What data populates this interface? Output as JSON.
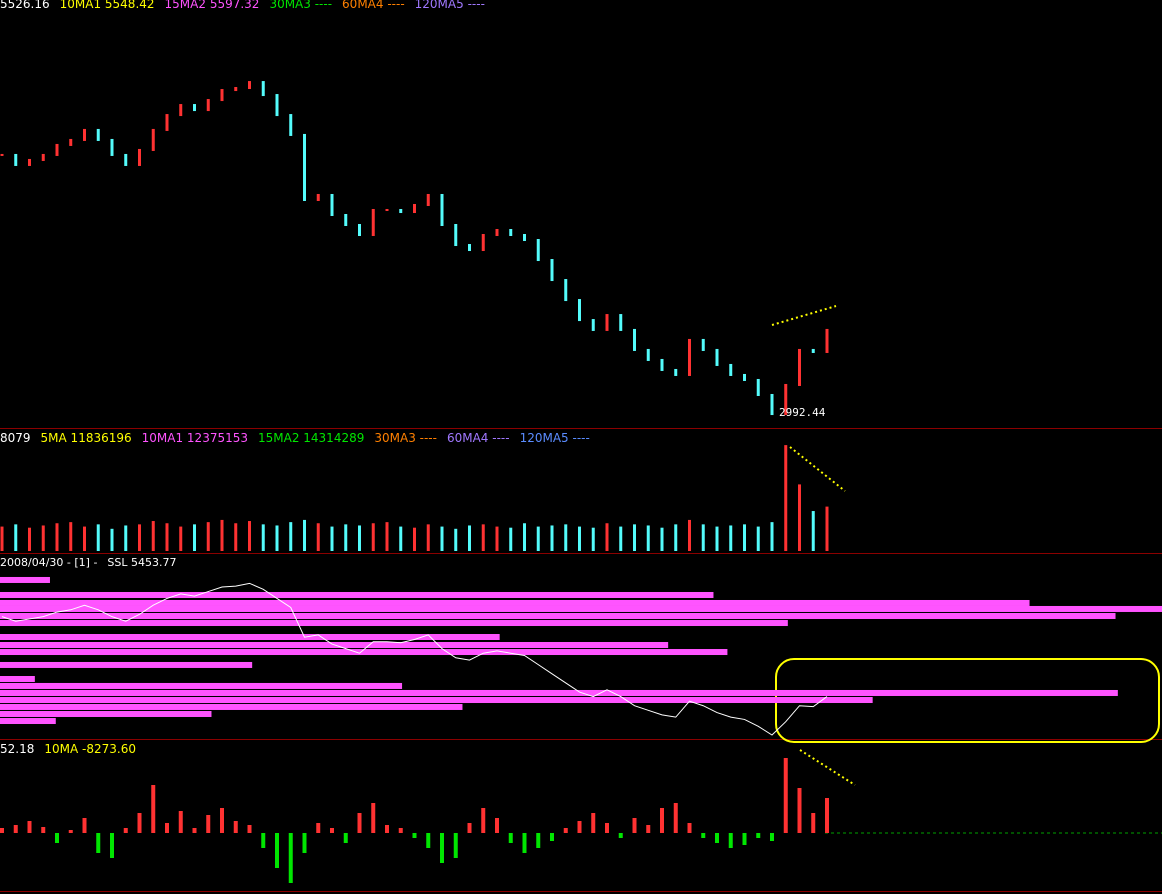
{
  "chart_data": [
    {
      "type": "price-bars",
      "legend": [
        {
          "text": "5526.16",
          "color": "#ffffff"
        },
        {
          "text": "10MA1 5548.42",
          "color": "#ffff00"
        },
        {
          "text": "15MA2 5597.32",
          "color": "#ff54ff"
        },
        {
          "text": "30MA3 ----",
          "color": "#00e600"
        },
        {
          "text": "60MA4 ----",
          "color": "#ff8000"
        },
        {
          "text": "120MA5 ----",
          "color": "#a078ff"
        }
      ],
      "annotation": "2992.44",
      "up_color": "#ff3232",
      "down_color": "#54fcfc",
      "ylim": [
        2900,
        6300
      ],
      "values": [
        5167,
        5083,
        5125,
        5167,
        5251,
        5293,
        5377,
        5293,
        5167,
        5083,
        5209,
        5377,
        5502,
        5586,
        5544,
        5628,
        5712,
        5729,
        5779,
        5670,
        5502,
        5335,
        4789,
        4831,
        4663,
        4579,
        4495,
        4705,
        4705,
        4688,
        4747,
        4831,
        4579,
        4411,
        4369,
        4495,
        4537,
        4495,
        4453,
        4285,
        4117,
        3949,
        3781,
        3698,
        3823,
        3698,
        3530,
        3446,
        3362,
        3320,
        3614,
        3530,
        3404,
        3320,
        3278,
        3152,
        2992,
        3236,
        3530,
        3513,
        3698
      ]
    },
    {
      "type": "volume-bars",
      "legend": [
        {
          "text": "8079",
          "color": "#ffffff"
        },
        {
          "text": "5MA 11836196",
          "color": "#ffff00"
        },
        {
          "text": "10MA1 12375153",
          "color": "#ff54ff"
        },
        {
          "text": "15MA2 14314289",
          "color": "#00e600"
        },
        {
          "text": "30MA3 ----",
          "color": "#ff8000"
        },
        {
          "text": "60MA4 ----",
          "color": "#a078ff"
        },
        {
          "text": "120MA5 ----",
          "color": "#5a8cff"
        }
      ],
      "ylim": [
        0,
        50000000
      ],
      "values": [
        11000000,
        12000000,
        10500000,
        11500000,
        12500000,
        13000000,
        11000000,
        12000000,
        10000000,
        11500000,
        12000000,
        13500000,
        12500000,
        11000000,
        12000000,
        13000000,
        14000000,
        12500000,
        13500000,
        12000000,
        11500000,
        13000000,
        14000000,
        12500000,
        11000000,
        12000000,
        11500000,
        12500000,
        13000000,
        11000000,
        10500000,
        12000000,
        11000000,
        10000000,
        11500000,
        12000000,
        11000000,
        10500000,
        12500000,
        11000000,
        11500000,
        12000000,
        11000000,
        10500000,
        12500000,
        11000000,
        12000000,
        11500000,
        10500000,
        12000000,
        14000000,
        12000000,
        11000000,
        11500000,
        12000000,
        11000000,
        13000000,
        47700000,
        30000000,
        18000000,
        20000000
      ]
    },
    {
      "type": "ssl",
      "legend": [
        {
          "text": "2008/04/30 - [1] -",
          "color": "#ffffff"
        },
        {
          "text": "SSL 5453.77",
          "color": "#ffffff"
        }
      ],
      "color": "#ff54ff",
      "line_color": "#ffffff",
      "ylim": [
        2900,
        6300
      ],
      "xlim": [
        0,
        100
      ],
      "levels": [
        5841,
        5565,
        5418,
        5308,
        5179,
        5050,
        4793,
        4646,
        4517,
        4279,
        4021,
        3893,
        3764,
        3635,
        3507,
        3378,
        3249
      ],
      "values": [
        4.3,
        61.4,
        88.6,
        100,
        96,
        67.8,
        43,
        57.5,
        62.6,
        21.7,
        3,
        34.6,
        96.2,
        75.1,
        39.8,
        18.2,
        4.8
      ]
    },
    {
      "type": "oscillator",
      "legend": [
        {
          "text": "52.18",
          "color": "#ffffff"
        },
        {
          "text": "10MA -8273.60",
          "color": "#ffff00"
        }
      ],
      "up_color": "#ff3232",
      "down_color": "#00e600",
      "ylim": [
        -57000,
        88000
      ],
      "values": [
        5000,
        8000,
        12000,
        6000,
        -10000,
        3000,
        15000,
        -20000,
        -25000,
        5000,
        20000,
        48000,
        10000,
        22000,
        5000,
        18000,
        25000,
        12000,
        8000,
        -15000,
        -35000,
        -50000,
        -20000,
        10000,
        5000,
        -10000,
        20000,
        30000,
        8000,
        5000,
        -5000,
        -15000,
        -30000,
        -25000,
        10000,
        25000,
        15000,
        -10000,
        -20000,
        -15000,
        -8000,
        5000,
        12000,
        20000,
        10000,
        -5000,
        15000,
        8000,
        25000,
        30000,
        10000,
        -5000,
        -10000,
        -15000,
        -12000,
        -5000,
        -8000,
        75000,
        45000,
        20000,
        35000
      ]
    }
  ]
}
